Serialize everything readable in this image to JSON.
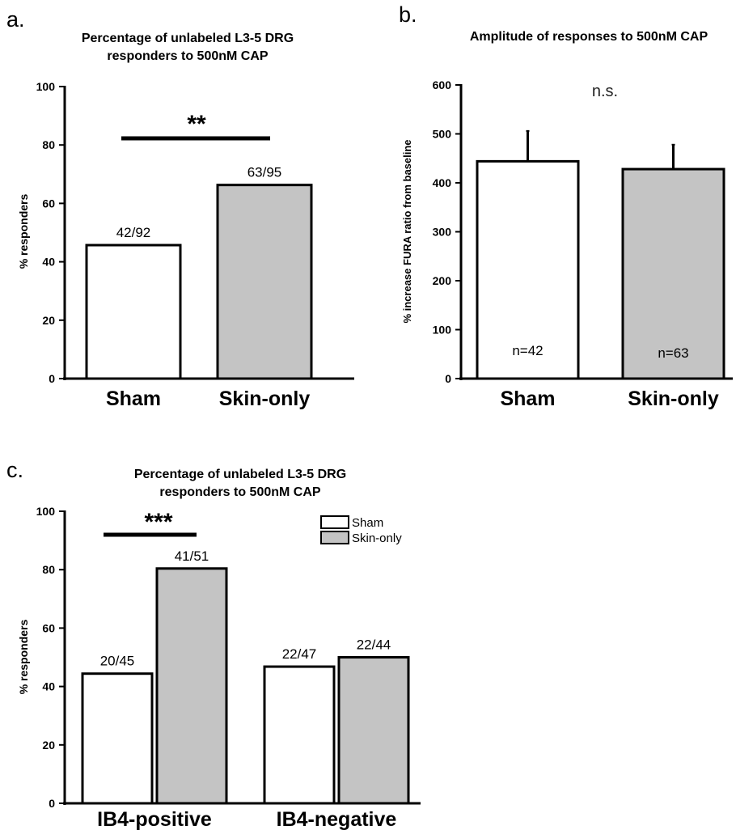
{
  "colors": {
    "sham": "#ffffff",
    "skin_only": "#c4c4c4",
    "stroke": "#000000"
  },
  "chart_data": [
    {
      "panel": "a.",
      "type": "bar",
      "title_line1": "Percentage of unlabeled L3-5 DRG",
      "title_line2": "responders to 500nM CAP",
      "ylabel": "% responders",
      "ylim": [
        0,
        100
      ],
      "yticks": [
        "0",
        "20",
        "40",
        "60",
        "80",
        "100"
      ],
      "categories": [
        "Sham",
        "Skin-only"
      ],
      "values": [
        45.7,
        66.3
      ],
      "data_labels": [
        "42/92",
        "63/95"
      ],
      "significance": "**"
    },
    {
      "panel": "b.",
      "type": "bar",
      "title": "Amplitude of responses to 500nM CAP",
      "ylabel": "% increase FURA ratio from baseline",
      "ylim": [
        0,
        600
      ],
      "yticks": [
        "0",
        "100",
        "200",
        "300",
        "400",
        "500",
        "600"
      ],
      "categories": [
        "Sham",
        "Skin-only"
      ],
      "values": [
        444,
        428
      ],
      "errors": [
        62,
        50
      ],
      "data_labels": [
        "n=42",
        "n=63"
      ],
      "significance": "n.s."
    },
    {
      "panel": "c.",
      "type": "bar",
      "title_line1": "Percentage of unlabeled L3-5 DRG",
      "title_line2": "responders to 500nM CAP",
      "ylabel": "% responders",
      "ylim": [
        0,
        100
      ],
      "yticks": [
        "0",
        "20",
        "40",
        "60",
        "80",
        "100"
      ],
      "categories": [
        "IB4-positive",
        "IB4-negative"
      ],
      "series": [
        {
          "name": "Sham",
          "values": [
            44.4,
            46.8
          ],
          "data_labels": [
            "20/45",
            "22/47"
          ]
        },
        {
          "name": "Skin-only",
          "values": [
            80.4,
            50.0
          ],
          "data_labels": [
            "41/51",
            "22/44"
          ]
        }
      ],
      "legend_position": "top-right",
      "significance": "***"
    }
  ]
}
